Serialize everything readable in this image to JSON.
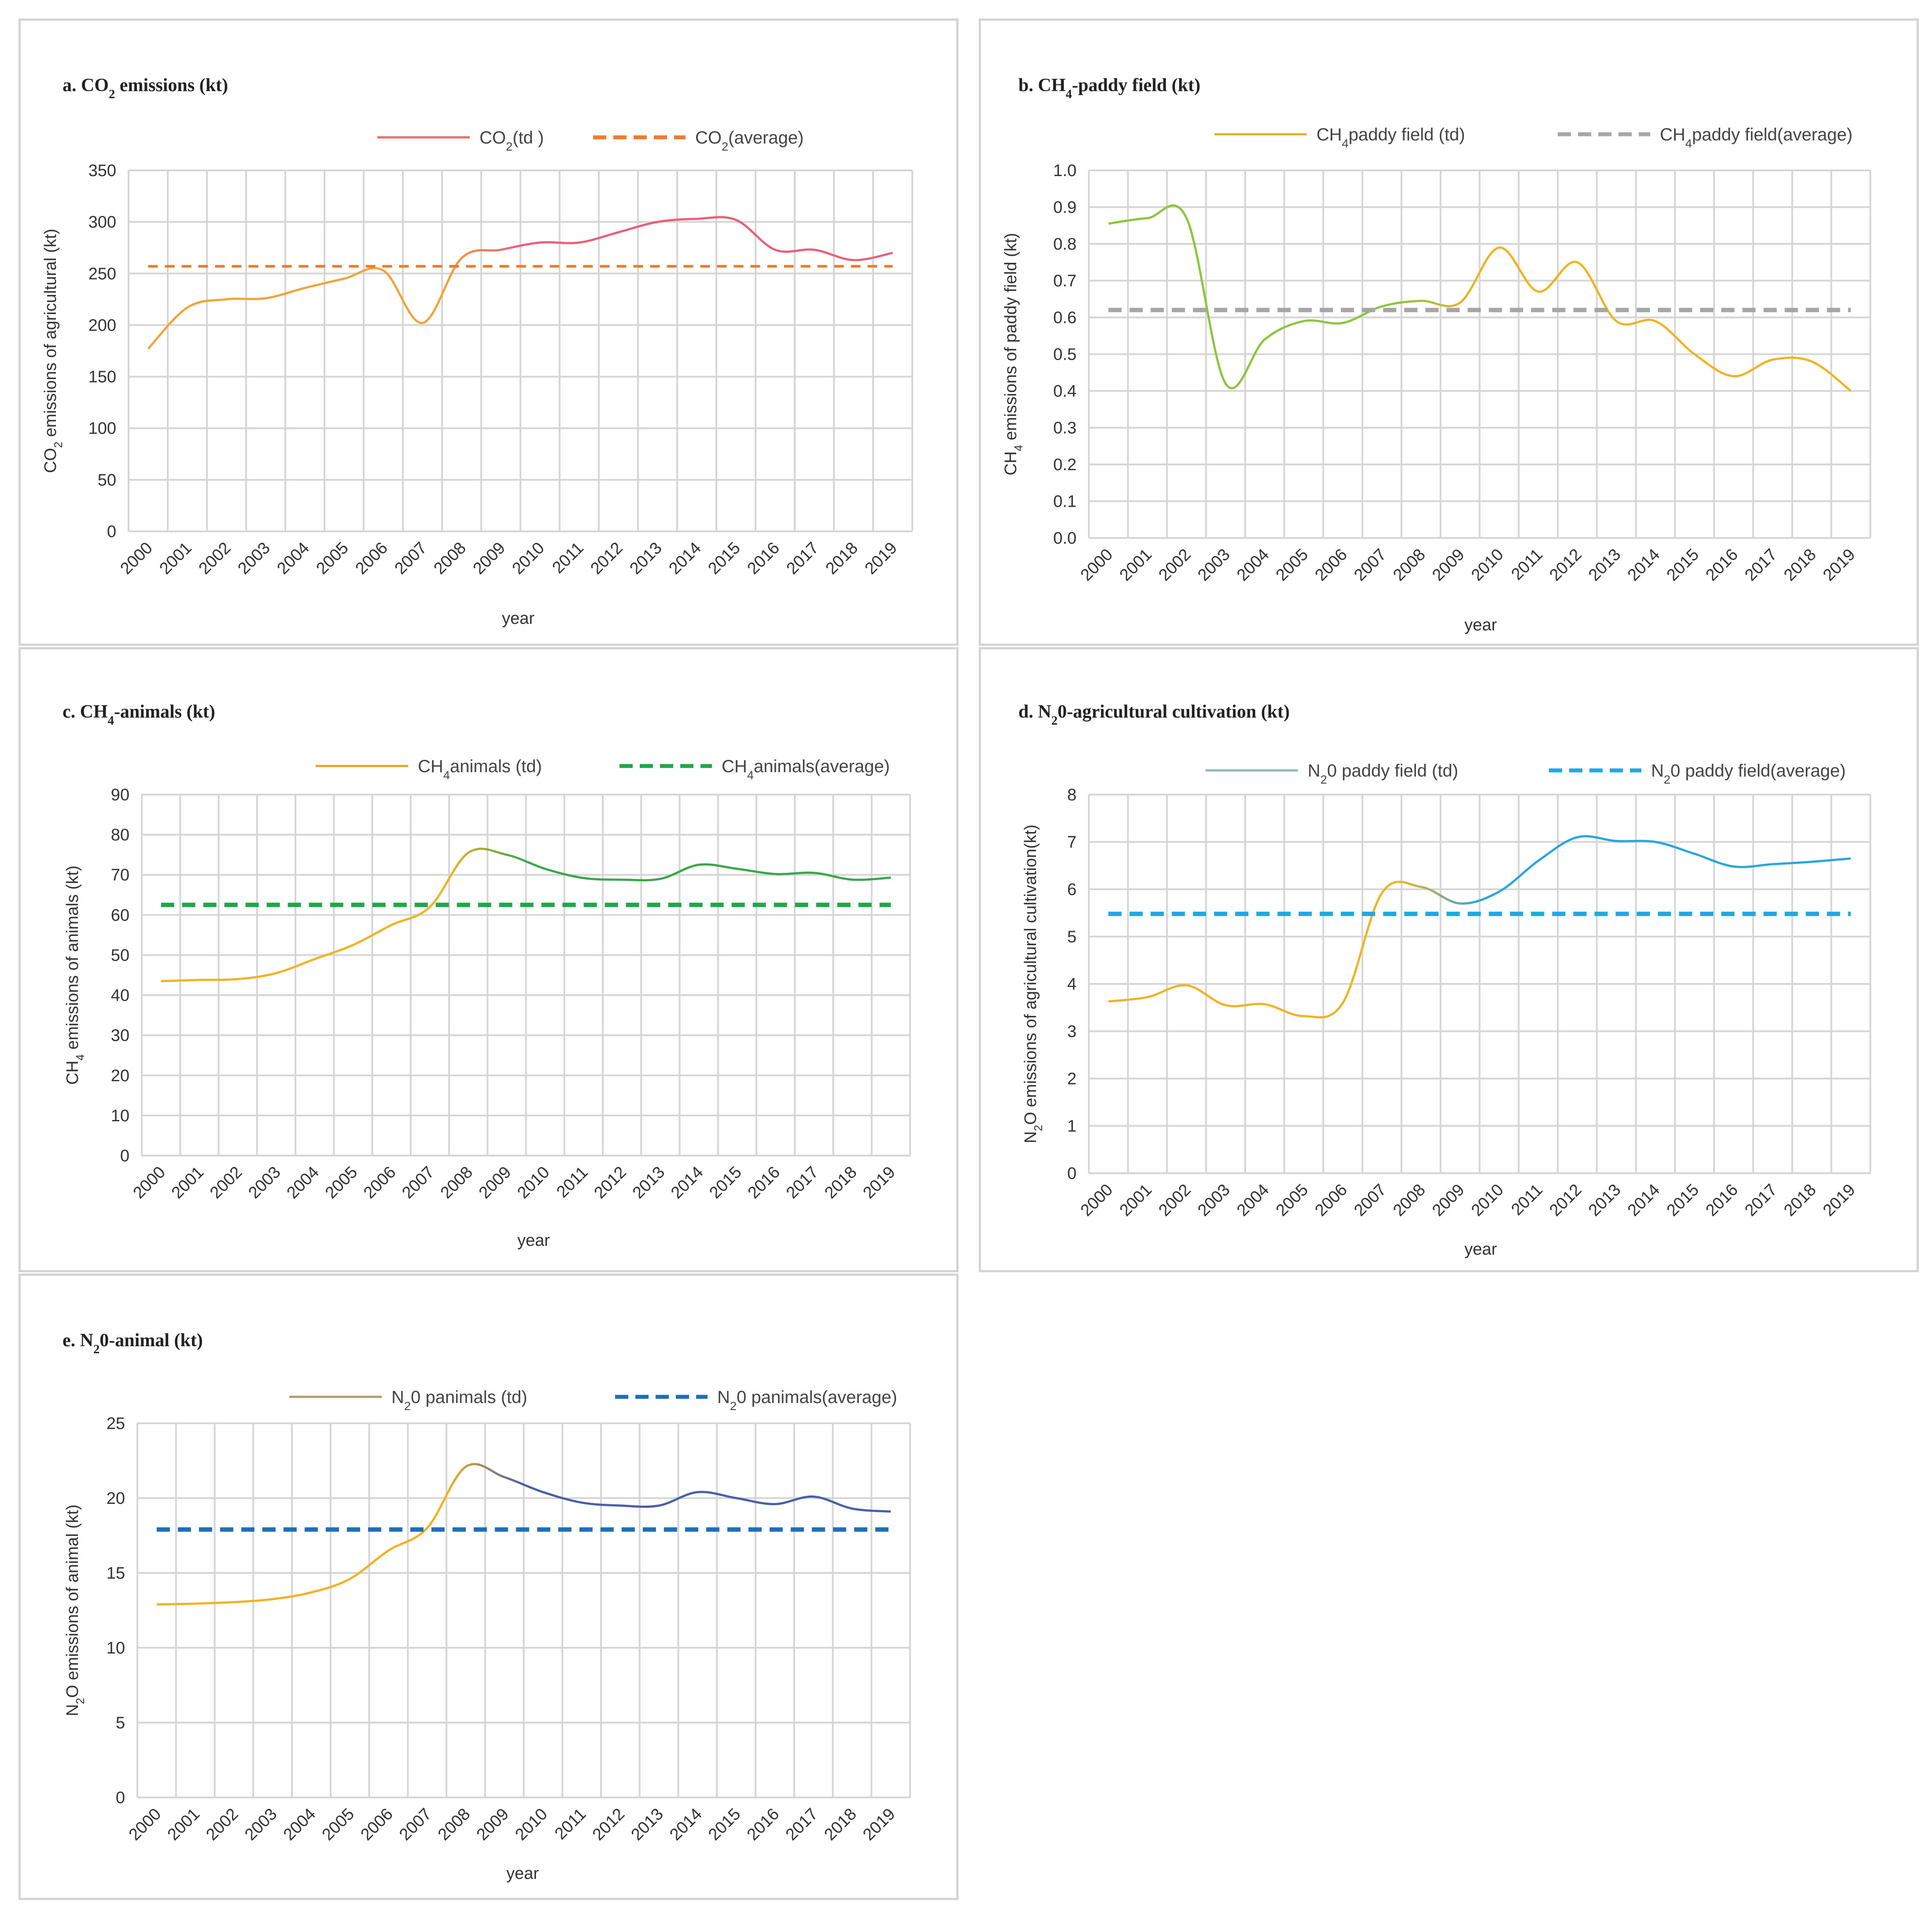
{
  "chart_data": [
    {
      "id": "a",
      "type": "line",
      "title": {
        "pre": "a. CO",
        "sub": "2",
        "post": " emissions (kt)"
      },
      "ylabel": {
        "pre": "CO",
        "sub": "2",
        "post": " emissions of agricultural (kt)"
      },
      "xlabel": "year",
      "categories": [
        "2000",
        "2001",
        "2002",
        "2003",
        "2004",
        "2005",
        "2006",
        "2007",
        "2008",
        "2009",
        "2010",
        "2011",
        "2012",
        "2013",
        "2014",
        "2015",
        "2016",
        "2017",
        "2018",
        "2019"
      ],
      "ylim": [
        0,
        350
      ],
      "yticks": [
        "0",
        "50",
        "100",
        "150",
        "200",
        "250",
        "300",
        "350"
      ],
      "ytick_values": [
        0,
        50,
        100,
        150,
        200,
        250,
        300,
        350
      ],
      "legend": [
        {
          "pre": "CO",
          "sub": "2",
          "post": "(td )",
          "color": "#e86a6a",
          "style": "solid"
        },
        {
          "pre": "CO",
          "sub": "2",
          "post": "(average)",
          "color": "#ef7b2d",
          "style": "dashed"
        }
      ],
      "series": [
        {
          "name": "CO2(td )",
          "values": [
            177,
            217,
            225,
            226,
            236,
            245,
            253,
            202,
            265,
            273,
            280,
            280,
            290,
            300,
            303,
            302,
            273,
            273,
            263,
            270
          ],
          "color_start": "#f0a53a",
          "color_end": "#e8607a"
        },
        {
          "name": "CO2(average)",
          "values": [
            257,
            257,
            257,
            257,
            257,
            257,
            257,
            257,
            257,
            257,
            257,
            257,
            257,
            257,
            257,
            257,
            257,
            257,
            257,
            257
          ],
          "color": "#ef7b2d",
          "dash": "22,16",
          "width": 6
        }
      ]
    },
    {
      "id": "b",
      "type": "line",
      "title": {
        "pre": "b. CH",
        "sub": "4",
        "post": "-paddy field (kt)"
      },
      "ylabel": {
        "pre": "CH",
        "sub": "4",
        "post": " emissions of paddy field (kt)"
      },
      "xlabel": "year",
      "categories": [
        "2000",
        "2001",
        "2002",
        "2003",
        "2004",
        "2005",
        "2006",
        "2007",
        "2008",
        "2009",
        "2010",
        "2011",
        "2012",
        "2013",
        "2014",
        "2015",
        "2016",
        "2017",
        "2018",
        "2019"
      ],
      "ylim": [
        0,
        1.0
      ],
      "yticks": [
        "0.0",
        "0.1",
        "0.2",
        "0.3",
        "0.4",
        "0.5",
        "0.6",
        "0.7",
        "0.8",
        "0.9",
        "1.0"
      ],
      "ytick_values": [
        0,
        0.1,
        0.2,
        0.3,
        0.4,
        0.5,
        0.6,
        0.7,
        0.8,
        0.9,
        1.0
      ],
      "legend": [
        {
          "pre": "CH",
          "sub": "4",
          "post": "paddy field  (td)",
          "color": "#e0b22a",
          "style": "solid"
        },
        {
          "pre": "CH",
          "sub": "4",
          "post": "paddy field(average)",
          "color": "#a6a6a6",
          "style": "dashed"
        }
      ],
      "series": [
        {
          "name": "CH4paddy field (td)",
          "values": [
            0.855,
            0.87,
            0.87,
            0.42,
            0.54,
            0.59,
            0.585,
            0.63,
            0.645,
            0.64,
            0.79,
            0.67,
            0.75,
            0.59,
            0.59,
            0.5,
            0.44,
            0.485,
            0.48,
            0.4
          ],
          "color_start": "#8cc63f",
          "color_end": "#f0b323"
        },
        {
          "name": "CH4paddy field(average)",
          "values": [
            0.62,
            0.62,
            0.62,
            0.62,
            0.62,
            0.62,
            0.62,
            0.62,
            0.62,
            0.62,
            0.62,
            0.62,
            0.62,
            0.62,
            0.62,
            0.62,
            0.62,
            0.62,
            0.62,
            0.62
          ],
          "color": "#a6a6a6",
          "dash": "30,18",
          "width": 10
        }
      ]
    },
    {
      "id": "c",
      "type": "line",
      "title": {
        "pre": "c. CH",
        "sub": "4",
        "post": "-animals (kt)"
      },
      "ylabel": {
        "pre": "CH",
        "sub": "4",
        "post": " emissions of animals (kt)"
      },
      "xlabel": "year",
      "categories": [
        "2000",
        "2001",
        "2002",
        "2003",
        "2004",
        "2005",
        "2006",
        "2007",
        "2008",
        "2009",
        "2010",
        "2011",
        "2012",
        "2013",
        "2014",
        "2015",
        "2016",
        "2017",
        "2018",
        "2019"
      ],
      "ylim": [
        0,
        90
      ],
      "yticks": [
        "0",
        "10",
        "20",
        "30",
        "40",
        "50",
        "60",
        "70",
        "80",
        "90"
      ],
      "ytick_values": [
        0,
        10,
        20,
        30,
        40,
        50,
        60,
        70,
        80,
        90
      ],
      "legend": [
        {
          "pre": "CH",
          "sub": "4",
          "post": "animals  (td)",
          "color": "#e0a52a",
          "style": "solid"
        },
        {
          "pre": "CH",
          "sub": "4",
          "post": "animals(average)",
          "color": "#1aa84a",
          "style": "dashed"
        }
      ],
      "series": [
        {
          "name": "CH4animals (td)",
          "values": [
            43.5,
            43.8,
            44,
            45.5,
            49,
            52.5,
            57.5,
            62,
            75.5,
            75,
            71.5,
            69.2,
            68.8,
            69,
            72.5,
            71.5,
            70.2,
            70.5,
            68.8,
            69.3
          ],
          "color_start": "#f0b323",
          "color_end": "#3aa84a"
        },
        {
          "name": "CH4animals(average)",
          "values": [
            62.5,
            62.5,
            62.5,
            62.5,
            62.5,
            62.5,
            62.5,
            62.5,
            62.5,
            62.5,
            62.5,
            62.5,
            62.5,
            62.5,
            62.5,
            62.5,
            62.5,
            62.5,
            62.5,
            62.5
          ],
          "color": "#1aa84a",
          "dash": "30,18",
          "width": 10
        }
      ]
    },
    {
      "id": "d",
      "type": "line",
      "title": {
        "pre": "d. N",
        "sub": "2",
        "post": "0-agricultural cultivation (kt)"
      },
      "ylabel": {
        "pre": "N",
        "sub": "2",
        "post": "O emissions of agricultural cultivation(kt)"
      },
      "xlabel": "year",
      "categories": [
        "2000",
        "2001",
        "2002",
        "2003",
        "2004",
        "2005",
        "2006",
        "2007",
        "2008",
        "2009",
        "2010",
        "2011",
        "2012",
        "2013",
        "2014",
        "2015",
        "2016",
        "2017",
        "2018",
        "2019"
      ],
      "ylim": [
        0,
        8
      ],
      "yticks": [
        "0",
        "1",
        "2",
        "3",
        "4",
        "5",
        "6",
        "7",
        "8"
      ],
      "ytick_values": [
        0,
        1,
        2,
        3,
        4,
        5,
        6,
        7,
        8
      ],
      "legend": [
        {
          "pre": "N",
          "sub": "2",
          "post": "0 paddy field  (td)",
          "color": "#8fb8b0",
          "style": "solid"
        },
        {
          "pre": "N",
          "sub": "2",
          "post": "0 paddy field(average)",
          "color": "#1fa9e0",
          "style": "dashed"
        }
      ],
      "series": [
        {
          "name": "N20 paddy field (td)",
          "values": [
            3.63,
            3.72,
            3.97,
            3.55,
            3.57,
            3.32,
            3.6,
            5.92,
            6.05,
            5.7,
            5.95,
            6.6,
            7.1,
            7.02,
            7.0,
            6.75,
            6.48,
            6.53,
            6.58,
            6.65
          ],
          "color_start": "#f0b323",
          "color_end": "#2aa5e0"
        },
        {
          "name": "N20 paddy field(average)",
          "values": [
            5.48,
            5.48,
            5.48,
            5.48,
            5.48,
            5.48,
            5.48,
            5.48,
            5.48,
            5.48,
            5.48,
            5.48,
            5.48,
            5.48,
            5.48,
            5.48,
            5.48,
            5.48,
            5.48,
            5.48
          ],
          "color": "#1fa9e0",
          "dash": "30,18",
          "width": 10
        }
      ]
    },
    {
      "id": "e",
      "type": "line",
      "title": {
        "pre": "e. N",
        "sub": "2",
        "post": "0-animal (kt)"
      },
      "ylabel": {
        "pre": "N",
        "sub": "2",
        "post": "O emissions of animal (kt)"
      },
      "xlabel": "year",
      "categories": [
        "2000",
        "2001",
        "2002",
        "2003",
        "2004",
        "2005",
        "2006",
        "2007",
        "2008",
        "2009",
        "2010",
        "2011",
        "2012",
        "2013",
        "2014",
        "2015",
        "2016",
        "2017",
        "2018",
        "2019"
      ],
      "ylim": [
        0,
        25
      ],
      "yticks": [
        "0",
        "5",
        "10",
        "15",
        "20",
        "25"
      ],
      "ytick_values": [
        0,
        5,
        10,
        15,
        20,
        25
      ],
      "legend": [
        {
          "pre": "N",
          "sub": "2",
          "post": "0 panimals  (td)",
          "color": "#b89a6a",
          "style": "solid"
        },
        {
          "pre": "N",
          "sub": "2",
          "post": "0 panimals(average)",
          "color": "#1f6fb8",
          "style": "dashed"
        }
      ],
      "series": [
        {
          "name": "N20 panimals (td)",
          "values": [
            12.9,
            12.95,
            13.05,
            13.25,
            13.7,
            14.6,
            16.5,
            18.0,
            22.1,
            21.4,
            20.4,
            19.7,
            19.5,
            19.5,
            20.4,
            20.0,
            19.6,
            20.1,
            19.3,
            19.1
          ],
          "color_start": "#f0b323",
          "color_end": "#4a5fa8"
        },
        {
          "name": "N20 panimals(average)",
          "values": [
            17.9,
            17.9,
            17.9,
            17.9,
            17.9,
            17.9,
            17.9,
            17.9,
            17.9,
            17.9,
            17.9,
            17.9,
            17.9,
            17.9,
            17.9,
            17.9,
            17.9,
            17.9,
            17.9,
            17.9
          ],
          "color": "#1f6fb8",
          "dash": "30,18",
          "width": 10
        }
      ]
    }
  ]
}
